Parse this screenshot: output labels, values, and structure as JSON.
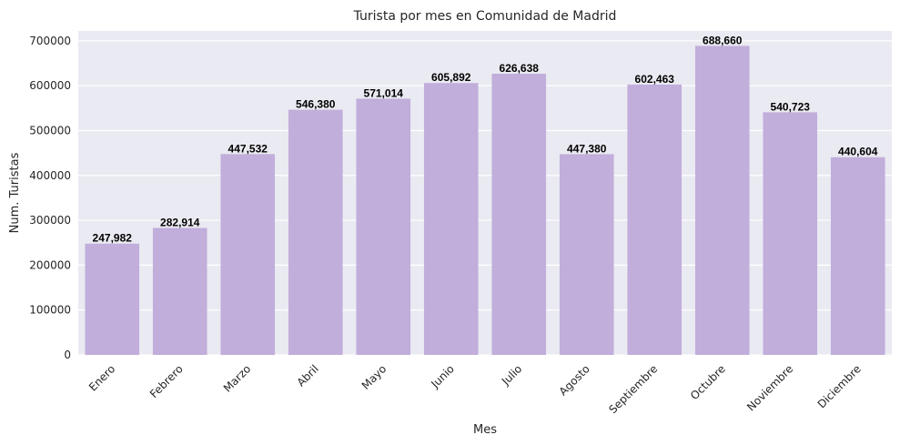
{
  "chart_data": {
    "type": "bar",
    "title": "Turista por mes en Comunidad de Madrid",
    "xlabel": "Mes",
    "ylabel": "Num. Turistas",
    "categories": [
      "Enero",
      "Febrero",
      "Marzo",
      "Abril",
      "Mayo",
      "Junio",
      "Julio",
      "Agosto",
      "Septiembre",
      "Octubre",
      "Noviembre",
      "Diciembre"
    ],
    "values": [
      247982,
      282914,
      447532,
      546380,
      571014,
      605892,
      626638,
      447380,
      602463,
      688660,
      540723,
      440604
    ],
    "value_labels": [
      "247,982",
      "282,914",
      "447,532",
      "546,380",
      "571,014",
      "605,892",
      "626,638",
      "447,380",
      "602,463",
      "688,660",
      "540,723",
      "440,604"
    ],
    "ylim": [
      0,
      722000
    ],
    "yticks": [
      "0",
      "100000",
      "200000",
      "300000",
      "400000",
      "500000",
      "600000",
      "700000"
    ],
    "grid": true,
    "colors": {
      "bar": "#c1aedb",
      "background": "#eaeaf2",
      "grid": "#ffffff"
    }
  }
}
